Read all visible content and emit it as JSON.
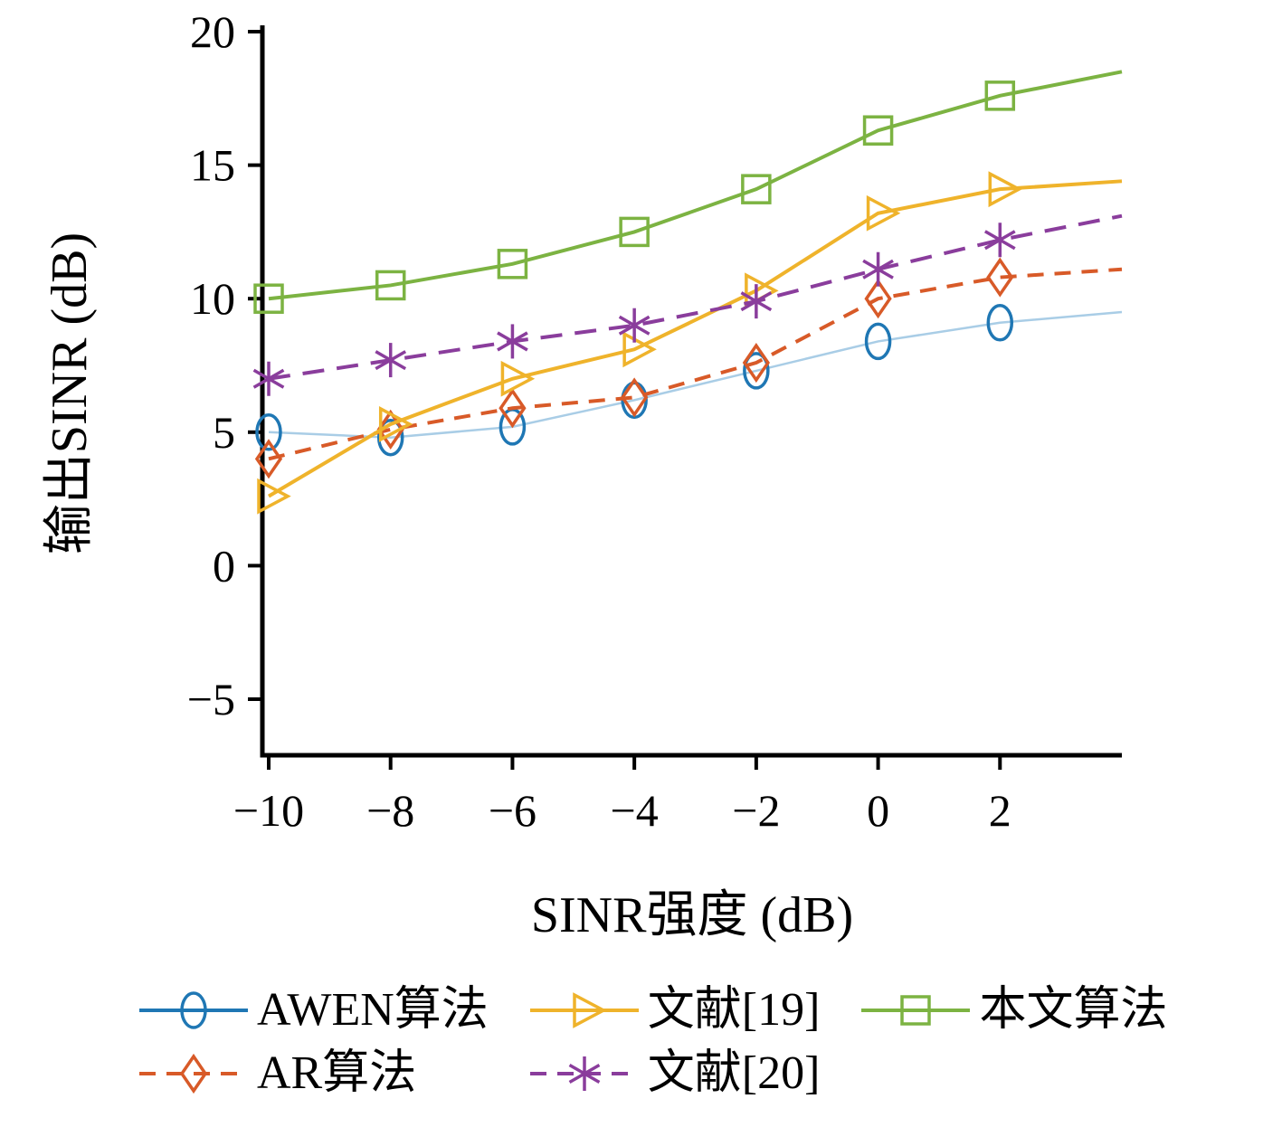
{
  "chart_data": {
    "type": "line",
    "title": "",
    "xlabel": "SINR强度 (dB)",
    "ylabel": "输出SINR (dB)",
    "xlim": [
      -10,
      4
    ],
    "ylim": [
      -7.1,
      20
    ],
    "grid": false,
    "legend_position": "below",
    "xticks": [
      -10,
      -8,
      -6,
      -4,
      -2,
      0,
      2
    ],
    "xtick_labels": [
      "−10",
      "−8",
      "−6",
      "−4",
      "−2",
      "0",
      "2"
    ],
    "yticks": [
      -5,
      0,
      5,
      10,
      15,
      20
    ],
    "ytick_labels": [
      "−5",
      "0",
      "5",
      "10",
      "15",
      "20"
    ],
    "x": [
      -10,
      -8,
      -6,
      -4,
      -2,
      0,
      2,
      4
    ],
    "marker_points": 7,
    "series": [
      {
        "name": "AWEN算法",
        "color": "#1f77b4",
        "line_color": "#a9cde6",
        "line_width": 2.5,
        "dash": "",
        "marker": "circle",
        "values": [
          5.0,
          4.8,
          5.2,
          6.2,
          7.3,
          8.4,
          9.1,
          9.5
        ]
      },
      {
        "name": "AR算法",
        "color": "#d85a28",
        "line_color": "#d85a28",
        "line_width": 4,
        "dash": "18 12",
        "marker": "diamond",
        "values": [
          4.0,
          5.1,
          5.9,
          6.3,
          7.6,
          10.0,
          10.8,
          11.1
        ]
      },
      {
        "name": "文献[19]",
        "color": "#efb32b",
        "line_color": "#efb32b",
        "line_width": 4,
        "dash": "",
        "marker": "triangle-right",
        "values": [
          2.6,
          5.3,
          7.0,
          8.1,
          10.3,
          13.2,
          14.1,
          14.4
        ]
      },
      {
        "name": "文献[20]",
        "color": "#8a3d9c",
        "line_color": "#8a3d9c",
        "line_width": 4,
        "dash": "24 14",
        "marker": "asterisk",
        "values": [
          7.0,
          7.7,
          8.4,
          9.0,
          9.9,
          11.1,
          12.2,
          13.1
        ]
      },
      {
        "name": "本文算法",
        "color": "#7cb342",
        "line_color": "#7cb342",
        "line_width": 4,
        "dash": "",
        "marker": "square",
        "values": [
          10.0,
          10.5,
          11.3,
          12.5,
          14.1,
          16.3,
          17.6,
          18.5
        ]
      }
    ],
    "legend_order": [
      0,
      2,
      4,
      1,
      3
    ]
  }
}
